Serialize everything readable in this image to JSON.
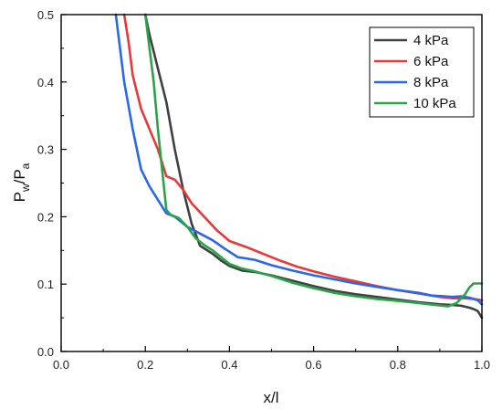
{
  "chart_data": {
    "type": "line",
    "xlabel": "x/l",
    "ylabel": {
      "main": "P",
      "sub_main": "w",
      "sep": "/P",
      "sub_den": "a"
    },
    "xlim": [
      0.0,
      1.0
    ],
    "ylim": [
      0.0,
      0.5
    ],
    "xticks": [
      "0.0",
      "0.2",
      "0.4",
      "0.6",
      "0.8",
      "1.0"
    ],
    "yticks": [
      "0.0",
      "0.1",
      "0.2",
      "0.3",
      "0.4",
      "0.5"
    ],
    "grid": false,
    "legend_position": "top-right",
    "series": [
      {
        "name": "4 kPa",
        "color": "#404040",
        "points": [
          [
            0.2,
            0.5
          ],
          [
            0.21,
            0.47
          ],
          [
            0.23,
            0.42
          ],
          [
            0.25,
            0.37
          ],
          [
            0.27,
            0.3
          ],
          [
            0.29,
            0.24
          ],
          [
            0.31,
            0.19
          ],
          [
            0.33,
            0.157
          ],
          [
            0.36,
            0.145
          ],
          [
            0.38,
            0.135
          ],
          [
            0.4,
            0.127
          ],
          [
            0.43,
            0.12
          ],
          [
            0.46,
            0.118
          ],
          [
            0.5,
            0.113
          ],
          [
            0.55,
            0.105
          ],
          [
            0.6,
            0.097
          ],
          [
            0.65,
            0.09
          ],
          [
            0.7,
            0.085
          ],
          [
            0.75,
            0.081
          ],
          [
            0.8,
            0.077
          ],
          [
            0.85,
            0.073
          ],
          [
            0.9,
            0.07
          ],
          [
            0.93,
            0.069
          ],
          [
            0.95,
            0.068
          ],
          [
            0.97,
            0.065
          ],
          [
            0.98,
            0.063
          ],
          [
            0.99,
            0.06
          ],
          [
            1.0,
            0.05
          ]
        ]
      },
      {
        "name": "6 kPa",
        "color": "#e8393a",
        "points": [
          [
            0.15,
            0.5
          ],
          [
            0.16,
            0.46
          ],
          [
            0.17,
            0.41
          ],
          [
            0.19,
            0.36
          ],
          [
            0.21,
            0.33
          ],
          [
            0.23,
            0.3
          ],
          [
            0.25,
            0.26
          ],
          [
            0.27,
            0.255
          ],
          [
            0.29,
            0.24
          ],
          [
            0.31,
            0.22
          ],
          [
            0.34,
            0.2
          ],
          [
            0.37,
            0.18
          ],
          [
            0.4,
            0.164
          ],
          [
            0.44,
            0.155
          ],
          [
            0.48,
            0.145
          ],
          [
            0.52,
            0.135
          ],
          [
            0.56,
            0.126
          ],
          [
            0.6,
            0.119
          ],
          [
            0.65,
            0.111
          ],
          [
            0.7,
            0.104
          ],
          [
            0.75,
            0.097
          ],
          [
            0.8,
            0.091
          ],
          [
            0.85,
            0.086
          ],
          [
            0.9,
            0.081
          ],
          [
            0.93,
            0.079
          ],
          [
            0.96,
            0.079
          ],
          [
            0.98,
            0.078
          ],
          [
            1.0,
            0.076
          ]
        ]
      },
      {
        "name": "8 kPa",
        "color": "#2968e8",
        "points": [
          [
            0.13,
            0.5
          ],
          [
            0.14,
            0.45
          ],
          [
            0.15,
            0.4
          ],
          [
            0.17,
            0.33
          ],
          [
            0.19,
            0.27
          ],
          [
            0.21,
            0.245
          ],
          [
            0.23,
            0.225
          ],
          [
            0.25,
            0.205
          ],
          [
            0.27,
            0.2
          ],
          [
            0.3,
            0.185
          ],
          [
            0.33,
            0.175
          ],
          [
            0.36,
            0.165
          ],
          [
            0.39,
            0.152
          ],
          [
            0.42,
            0.14
          ],
          [
            0.46,
            0.136
          ],
          [
            0.5,
            0.128
          ],
          [
            0.55,
            0.12
          ],
          [
            0.6,
            0.113
          ],
          [
            0.65,
            0.107
          ],
          [
            0.7,
            0.101
          ],
          [
            0.75,
            0.096
          ],
          [
            0.8,
            0.091
          ],
          [
            0.85,
            0.087
          ],
          [
            0.88,
            0.083
          ],
          [
            0.91,
            0.082
          ],
          [
            0.93,
            0.081
          ],
          [
            0.95,
            0.082
          ],
          [
            0.97,
            0.08
          ],
          [
            0.99,
            0.076
          ],
          [
            1.0,
            0.07
          ]
        ]
      },
      {
        "name": "10 kPa",
        "color": "#2aa34a",
        "points": [
          [
            0.2,
            0.5
          ],
          [
            0.21,
            0.45
          ],
          [
            0.22,
            0.4
          ],
          [
            0.23,
            0.33
          ],
          [
            0.24,
            0.27
          ],
          [
            0.25,
            0.21
          ],
          [
            0.26,
            0.203
          ],
          [
            0.28,
            0.198
          ],
          [
            0.3,
            0.185
          ],
          [
            0.32,
            0.168
          ],
          [
            0.34,
            0.158
          ],
          [
            0.36,
            0.15
          ],
          [
            0.38,
            0.14
          ],
          [
            0.4,
            0.13
          ],
          [
            0.43,
            0.123
          ],
          [
            0.46,
            0.119
          ],
          [
            0.5,
            0.112
          ],
          [
            0.55,
            0.102
          ],
          [
            0.6,
            0.094
          ],
          [
            0.65,
            0.087
          ],
          [
            0.7,
            0.082
          ],
          [
            0.75,
            0.078
          ],
          [
            0.8,
            0.075
          ],
          [
            0.85,
            0.072
          ],
          [
            0.89,
            0.069
          ],
          [
            0.92,
            0.067
          ],
          [
            0.94,
            0.072
          ],
          [
            0.96,
            0.085
          ],
          [
            0.97,
            0.095
          ],
          [
            0.98,
            0.101
          ],
          [
            1.0,
            0.101
          ]
        ]
      }
    ]
  }
}
